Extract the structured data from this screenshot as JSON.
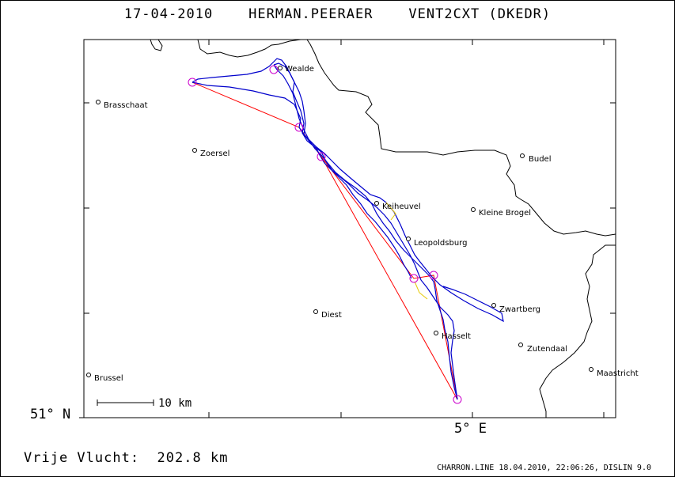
{
  "header": {
    "date": "17-04-2010",
    "pilot": "HERMAN.PEERAER",
    "glider": "VENT2CXT (DKEDR)"
  },
  "axes": {
    "lat_label": "51° N",
    "lon_label": "5° E"
  },
  "scale_bar": {
    "label": "10 km"
  },
  "summary": {
    "label": "Vrije Vlucht:",
    "distance": "202.8 km"
  },
  "credit": "CHARRON.LINE 18.04.2010, 22:06:26, DISLIN 9.0",
  "colors": {
    "track": "#0000cc",
    "task_line": "#ff0000",
    "turnpoint": "#cc00cc",
    "border": "#000000",
    "gap": "#e6c800"
  },
  "towns": [
    {
      "id": "wealde",
      "name": "Wealde"
    },
    {
      "id": "brasschaat",
      "name": "Brasschaat"
    },
    {
      "id": "zoersel",
      "name": "Zoersel"
    },
    {
      "id": "budel",
      "name": "Budel"
    },
    {
      "id": "keiheuvel",
      "name": "Keiheuvel"
    },
    {
      "id": "kleine-brogel",
      "name": "Kleine Brogel"
    },
    {
      "id": "leopoldsburg",
      "name": "Leopoldsburg"
    },
    {
      "id": "zwartberg",
      "name": "Zwartberg"
    },
    {
      "id": "diest",
      "name": "Diest"
    },
    {
      "id": "hasselt",
      "name": "Hasselt"
    },
    {
      "id": "zutendaal",
      "name": "Zutendaal"
    },
    {
      "id": "brussel",
      "name": "Brussel"
    },
    {
      "id": "maastricht",
      "name": "Maastricht"
    }
  ]
}
